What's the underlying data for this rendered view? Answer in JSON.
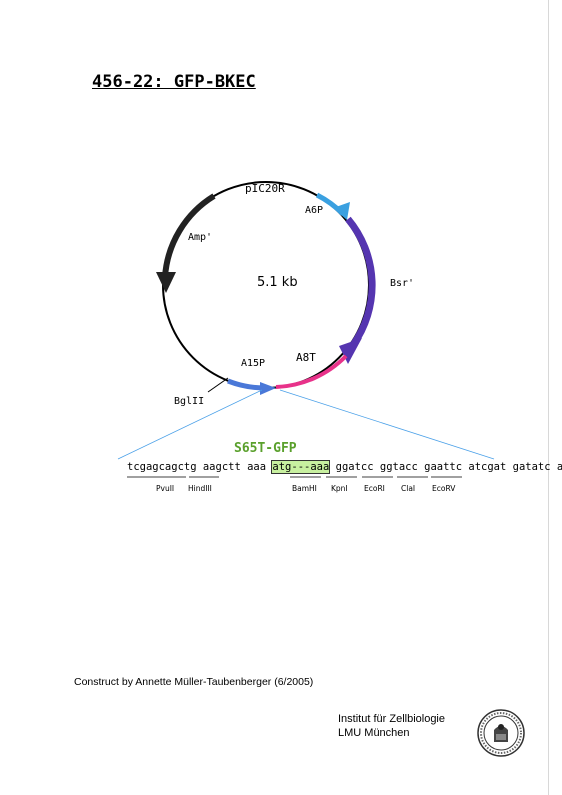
{
  "title": "456-22: GFP-BKEC",
  "plasmid": {
    "size_label": "5.1 kb",
    "features": {
      "pIC20R": "pIC20R",
      "A6P": "A6P",
      "Bsr": "Bsr'",
      "Amp": "Amp'",
      "A8T": "A8T",
      "A15P": "A15P",
      "BglII": "BglII"
    },
    "colors": {
      "amp": "#222222",
      "a6p": "#3aa0e0",
      "bsr": "#5535b0",
      "a8t": "#e8328a",
      "a15p": "#4a78d8"
    }
  },
  "insert_label": "S65T-GFP",
  "sequence": {
    "before": "tcgagcagctg aagctt aaa ",
    "highlight": "atg---aaa",
    "after": " ggatcc ggtacc gaattc atcgat gatatc agatc"
  },
  "sites": [
    "PvuII",
    "HindIII",
    "BamHI",
    "KpnI",
    "EcoRI",
    "ClaI",
    "EcoRV"
  ],
  "credit": "Construct by Annette Müller-Taubenberger (6/2005)",
  "institute": {
    "line1": "Institut für Zellbiologie",
    "line2": "LMU München"
  }
}
